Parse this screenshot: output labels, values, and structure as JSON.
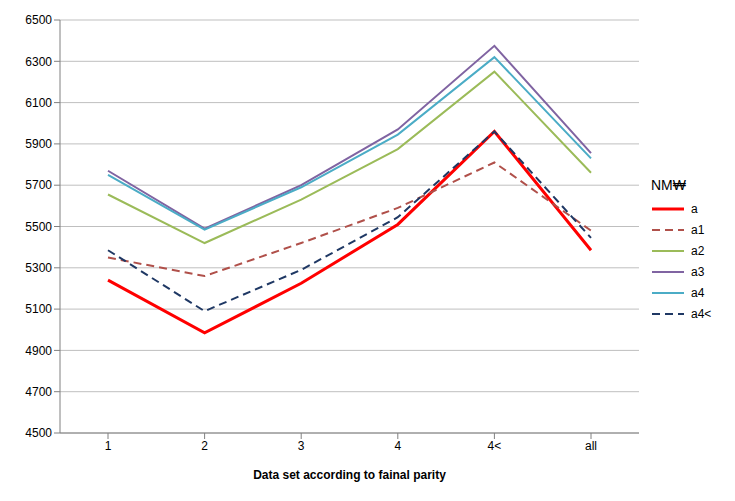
{
  "chart_data": {
    "type": "line",
    "x_label": "Data set according to fainal parity",
    "legend_title": "NM₩",
    "legend": "right",
    "grid": true,
    "categories": [
      "1",
      "2",
      "3",
      "4",
      "4<",
      "all"
    ],
    "ylim": [
      4500,
      6500
    ],
    "yticks": [
      4500,
      4700,
      4900,
      5100,
      5300,
      5500,
      5700,
      5900,
      6100,
      6300,
      6500
    ],
    "series": [
      {
        "name": "a",
        "color": "#ff0000",
        "line_style": "solid",
        "values": [
          5240,
          4985,
          5225,
          5510,
          5960,
          5385
        ]
      },
      {
        "name": "a1",
        "color": "#b0504a",
        "line_style": "dashed",
        "values": [
          5350,
          5260,
          5420,
          5590,
          5810,
          5480
        ]
      },
      {
        "name": "a2",
        "color": "#9bbb59",
        "line_style": "solid",
        "values": [
          5655,
          5420,
          5630,
          5875,
          6250,
          5760
        ]
      },
      {
        "name": "a3",
        "color": "#8064a2",
        "line_style": "solid",
        "values": [
          5770,
          5490,
          5700,
          5970,
          6375,
          5855
        ]
      },
      {
        "name": "a4",
        "color": "#4bacc6",
        "line_style": "solid",
        "values": [
          5750,
          5485,
          5690,
          5945,
          6320,
          5830
        ]
      },
      {
        "name": "a4<",
        "color": "#1f3864",
        "line_style": "dashed",
        "values": [
          5385,
          5090,
          5290,
          5545,
          5960,
          5445
        ]
      }
    ]
  }
}
